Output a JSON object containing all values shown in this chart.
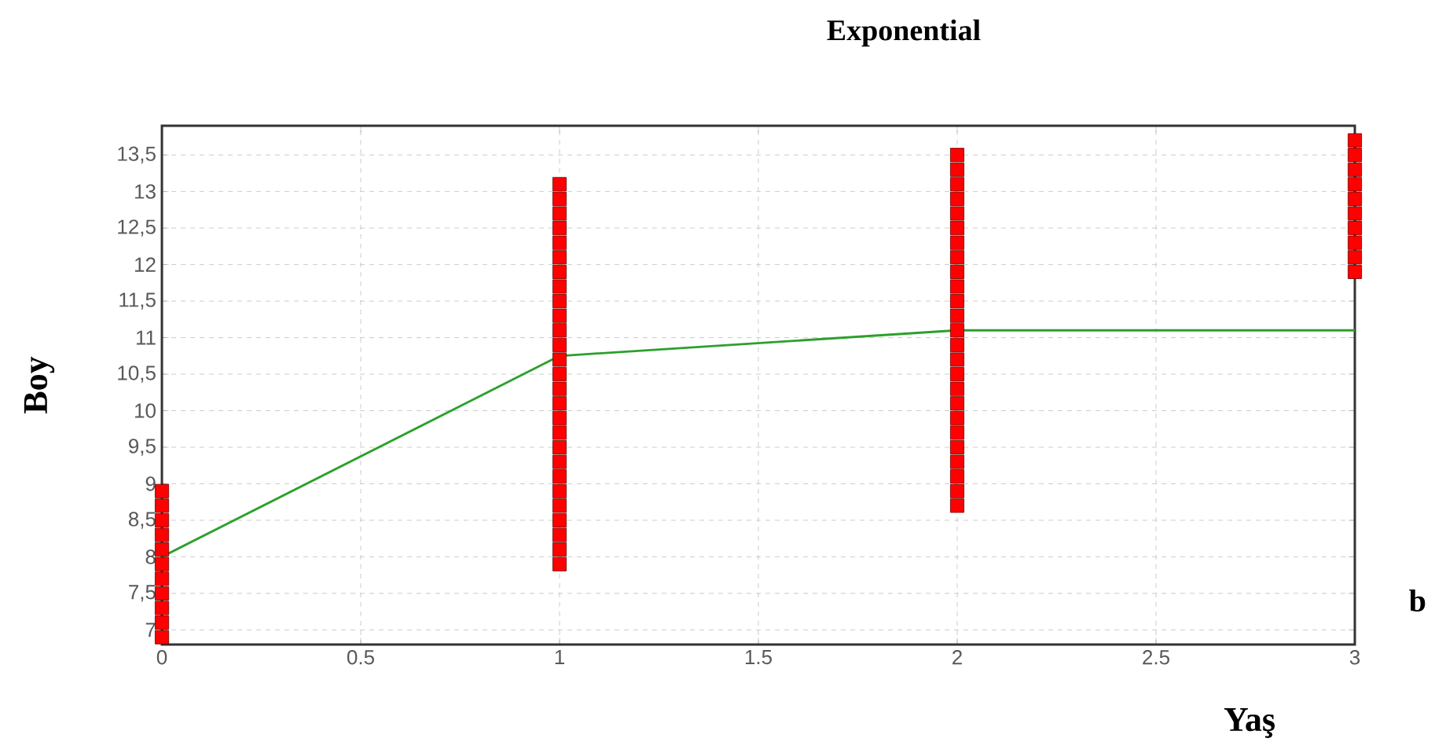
{
  "chart_data": {
    "type": "line",
    "title": "Exponential",
    "xlabel": "Yaş",
    "ylabel": "Boy",
    "annotations": [
      "b"
    ],
    "xlim": [
      0,
      3
    ],
    "ylim": [
      6.8,
      13.9
    ],
    "xticks": [
      0,
      0.5,
      1,
      1.5,
      2,
      2.5,
      3
    ],
    "yticks": [
      7,
      {
        "value": 7.5,
        "label": "7,5"
      },
      8,
      {
        "value": 8.5,
        "label": "8,5"
      },
      9,
      {
        "value": 9.5,
        "label": "9,5"
      },
      10,
      {
        "value": 10.5,
        "label": "10,5"
      },
      11,
      {
        "value": 11.5,
        "label": "11,5"
      },
      12,
      {
        "value": 12.5,
        "label": "12,5"
      },
      13,
      {
        "value": 13.5,
        "label": "13,5"
      }
    ],
    "grid": true,
    "series": [
      {
        "type": "scatter",
        "marker": "square",
        "color": "#ff0000",
        "x": [
          0,
          0,
          0,
          0,
          0,
          0,
          0,
          0,
          0,
          0,
          0,
          1,
          1,
          1,
          1,
          1,
          1,
          1,
          1,
          1,
          1,
          1,
          1,
          1,
          1,
          1,
          1,
          1,
          1,
          1,
          1,
          1,
          1,
          1,
          1,
          1,
          1,
          1,
          2,
          2,
          2,
          2,
          2,
          2,
          2,
          2,
          2,
          2,
          2,
          2,
          2,
          2,
          2,
          2,
          2,
          2,
          2,
          2,
          2,
          2,
          2,
          2,
          2,
          3,
          3,
          3,
          3,
          3,
          3,
          3,
          3,
          3,
          3
        ],
        "values": [
          6.9,
          7.1,
          7.3,
          7.5,
          7.7,
          7.9,
          8.1,
          8.3,
          8.5,
          8.7,
          8.9,
          7.9,
          8.1,
          8.3,
          8.5,
          8.7,
          8.9,
          9.1,
          9.3,
          9.5,
          9.7,
          9.9,
          10.1,
          10.3,
          10.5,
          10.7,
          10.9,
          11.1,
          11.3,
          11.5,
          11.7,
          11.9,
          12.1,
          12.3,
          12.5,
          12.7,
          12.9,
          13.1,
          8.7,
          8.9,
          9.1,
          9.3,
          9.5,
          9.7,
          9.9,
          10.1,
          10.3,
          10.5,
          10.7,
          10.9,
          11.1,
          11.3,
          11.5,
          11.7,
          11.9,
          12.1,
          12.3,
          12.5,
          12.7,
          12.9,
          13.1,
          13.3,
          13.5,
          11.9,
          12.1,
          12.3,
          12.5,
          12.7,
          12.9,
          13.1,
          13.3,
          13.5,
          13.7
        ]
      },
      {
        "marker": "none",
        "color": "#2ca02c",
        "x": [
          0,
          1,
          2,
          3
        ],
        "values": [
          8,
          10.75,
          11.1,
          11.1
        ]
      }
    ]
  }
}
